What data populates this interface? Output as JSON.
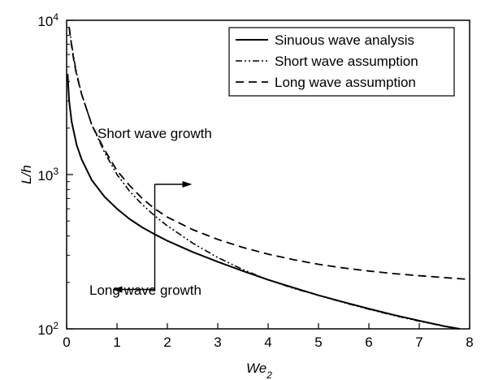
{
  "chart_data": {
    "type": "line",
    "title": "",
    "xlabel": "We",
    "xlabel_sub": "2",
    "ylabel": "L/h",
    "xlim": [
      0,
      8
    ],
    "ylim": [
      100,
      10000
    ],
    "yscale": "log",
    "grid": false,
    "legend_position": "top-right",
    "x_ticks": [
      "0",
      "1",
      "2",
      "3",
      "4",
      "5",
      "6",
      "7",
      "8"
    ],
    "y_ticks": [
      {
        "base": "10",
        "exp": "2",
        "value": 100
      },
      {
        "base": "10",
        "exp": "3",
        "value": 1000
      },
      {
        "base": "10",
        "exp": "4",
        "value": 10000
      }
    ],
    "series": [
      {
        "name": "Sinuous wave analysis",
        "style": "solid",
        "x": [
          0.02,
          0.05,
          0.1,
          0.2,
          0.3,
          0.5,
          0.75,
          1.0,
          1.25,
          1.5,
          1.75,
          2.0,
          2.5,
          3.0,
          3.5,
          4.0,
          4.5,
          5.0,
          5.5,
          6.0,
          6.5,
          7.0,
          7.5,
          7.8
        ],
        "y": [
          4500,
          3000,
          2200,
          1550,
          1250,
          920,
          720,
          600,
          515,
          455,
          410,
          372,
          315,
          272,
          237,
          208,
          185,
          165,
          149,
          135,
          123,
          113,
          104,
          100
        ]
      },
      {
        "name": "Short wave assumption",
        "style": "dashdot",
        "x": [
          0.05,
          0.1,
          0.15,
          0.2,
          0.3,
          0.5,
          0.75,
          1.0,
          1.25,
          1.5,
          1.75,
          2.0,
          2.5,
          3.0,
          3.5,
          4.0,
          4.5,
          5.0,
          5.5,
          6.0,
          6.5,
          7.0,
          7.5,
          7.8
        ],
        "y": [
          9000,
          7000,
          5500,
          4500,
          3300,
          2100,
          1400,
          1000,
          780,
          640,
          540,
          465,
          360,
          290,
          242,
          208,
          183,
          165,
          148,
          134,
          122,
          112,
          104,
          100
        ]
      },
      {
        "name": "Long wave assumption",
        "style": "dashed",
        "x": [
          0.05,
          0.1,
          0.15,
          0.2,
          0.3,
          0.5,
          0.75,
          1.0,
          1.25,
          1.5,
          1.75,
          2.0,
          2.5,
          3.0,
          3.5,
          4.0,
          4.5,
          5.0,
          5.5,
          6.0,
          6.5,
          7.0,
          7.5,
          8.0
        ],
        "y": [
          9000,
          6800,
          5300,
          4400,
          3300,
          2100,
          1450,
          1060,
          850,
          700,
          600,
          530,
          440,
          380,
          337,
          305,
          281,
          262,
          248,
          237,
          228,
          221,
          215,
          209
        ]
      }
    ],
    "annotations": [
      {
        "text": "Short wave growth",
        "x": 1.75,
        "y": 1500
      },
      {
        "text": "Long wave growth",
        "x": 1.75,
        "y": 150
      }
    ],
    "divider_x": 1.75
  }
}
